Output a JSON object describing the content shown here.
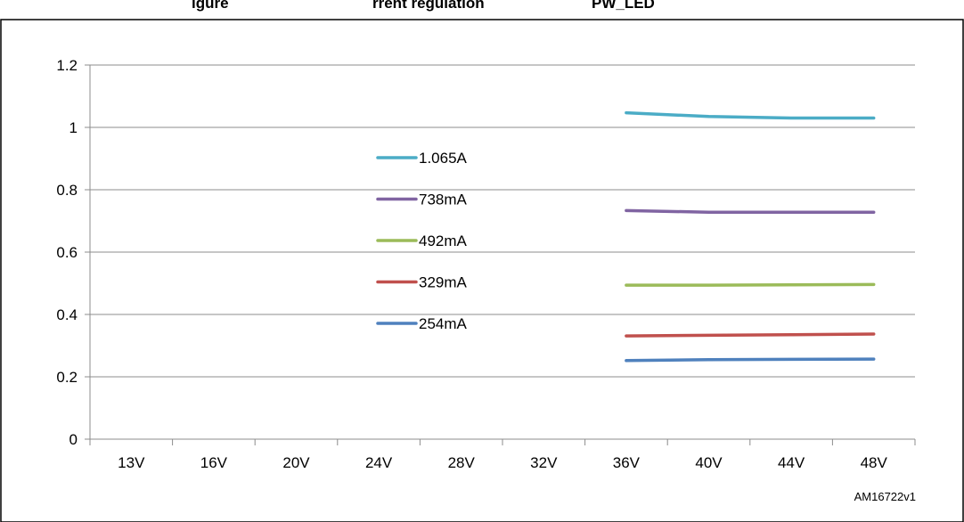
{
  "header": {
    "fragment_left": "igure",
    "fragment_mid": "rrent regulation",
    "fragment_right": "PW_LED"
  },
  "chart_data": {
    "type": "line",
    "title": "",
    "xlabel": "",
    "ylabel": "",
    "categories": [
      "13V",
      "16V",
      "20V",
      "24V",
      "28V",
      "32V",
      "36V",
      "40V",
      "44V",
      "48V"
    ],
    "ylim": [
      0,
      1.2
    ],
    "yticks": [
      0,
      0.2,
      0.4,
      0.6,
      0.8,
      1,
      1.2
    ],
    "grid": true,
    "legend_position": "center-left",
    "series": [
      {
        "name": "1.065A",
        "color": "#4bacc6",
        "values": [
          null,
          null,
          null,
          null,
          null,
          null,
          1.047,
          1.035,
          1.03,
          1.03
        ]
      },
      {
        "name": "738mA",
        "color": "#8064a2",
        "values": [
          null,
          null,
          null,
          null,
          null,
          null,
          0.733,
          0.728,
          0.728,
          0.728
        ]
      },
      {
        "name": "492mA",
        "color": "#9bbb59",
        "values": [
          null,
          null,
          null,
          null,
          null,
          null,
          0.494,
          0.494,
          0.495,
          0.496
        ]
      },
      {
        "name": "329mA",
        "color": "#c0504d",
        "values": [
          null,
          null,
          null,
          null,
          null,
          null,
          0.331,
          0.333,
          0.335,
          0.337
        ]
      },
      {
        "name": "254mA",
        "color": "#4f81bd",
        "values": [
          null,
          null,
          null,
          null,
          null,
          null,
          0.252,
          0.255,
          0.256,
          0.257
        ]
      }
    ]
  },
  "figure_code": "AM16722v1"
}
